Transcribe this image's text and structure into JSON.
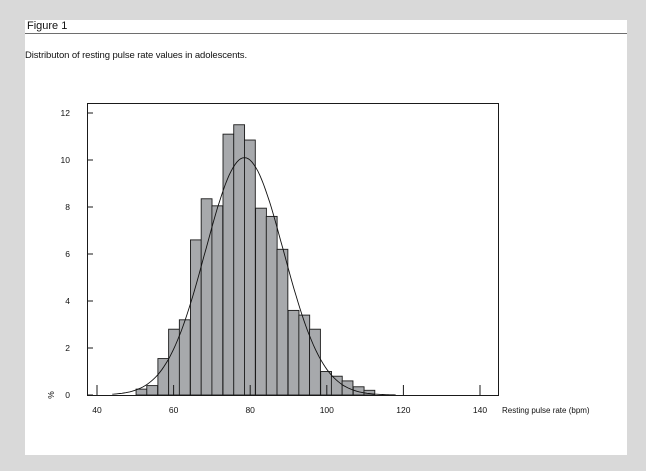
{
  "figure": {
    "label": "Figure 1",
    "caption": "Distributon of resting pulse rate values in adolescents."
  },
  "colors": {
    "background": "#d9d9d9",
    "panel": "#ffffff",
    "bar_fill": "#a7a9ac",
    "bar_stroke": "#1a1a1a",
    "axis": "#1a1a1a"
  },
  "chart_data": {
    "type": "bar",
    "title": "Distributon of resting pulse rate values in adolescents.",
    "xlabel": "Resting pulse rate (bpm)",
    "ylabel": "%",
    "xlim": [
      37.5,
      144
    ],
    "ylim": [
      0,
      12.4
    ],
    "x_ticks": [
      40,
      60,
      80,
      100,
      120,
      140
    ],
    "y_ticks": [
      0,
      2,
      4,
      6,
      8,
      10,
      12
    ],
    "grid": false,
    "legend": null,
    "bin_width": 2.83,
    "bin_starts": [
      50.2,
      53.0,
      55.9,
      58.7,
      61.5,
      64.4,
      67.2,
      70.0,
      72.9,
      75.7,
      78.5,
      81.4,
      84.2,
      87.0,
      89.9,
      92.7,
      95.5,
      98.4,
      101.2,
      104.0,
      106.9,
      109.7
    ],
    "values": [
      0.25,
      0.4,
      1.55,
      2.8,
      3.2,
      6.6,
      8.35,
      8.05,
      11.1,
      11.5,
      10.85,
      7.95,
      7.6,
      6.2,
      3.6,
      3.4,
      2.8,
      1.0,
      0.8,
      0.6,
      0.35,
      0.2
    ],
    "fitted_curve": {
      "type": "normal",
      "mean": 78.5,
      "sd": 10.2,
      "peak": 10.1,
      "style": "solid/dashed line"
    }
  }
}
